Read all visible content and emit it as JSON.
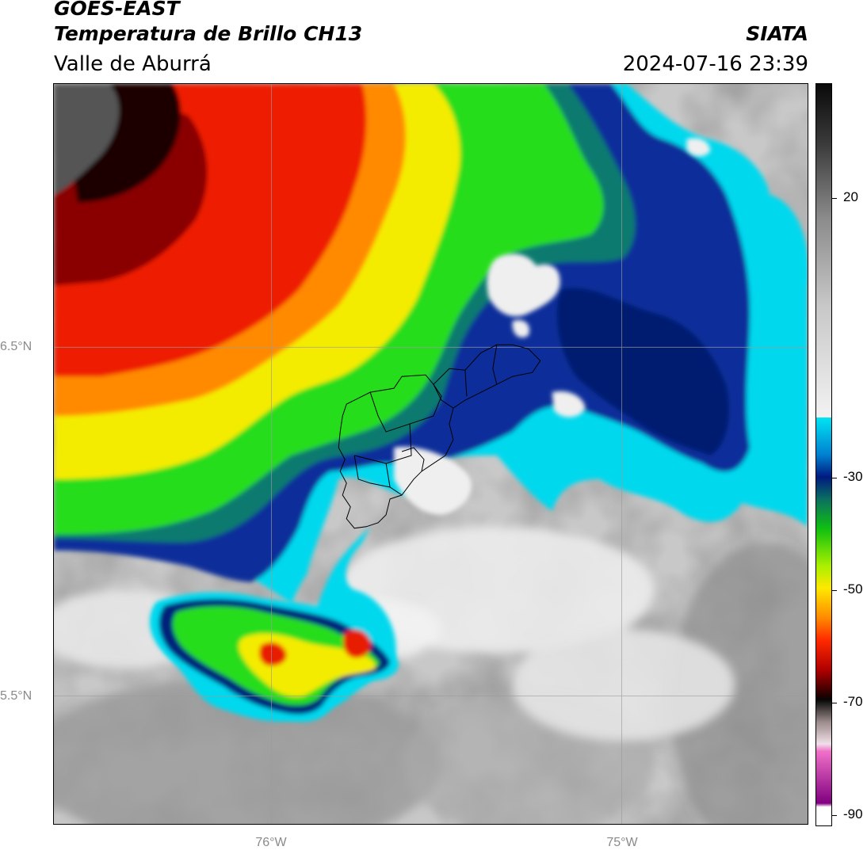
{
  "header": {
    "title": "GOES-EAST",
    "subtitle": "Temperatura de Brillo CH13",
    "region": "Valle de Aburrá",
    "brand": "SIATA",
    "datetime": "2024-07-16 23:39"
  },
  "map": {
    "lon_labels": [
      "76°W",
      "75°W"
    ],
    "lat_labels": [
      "6.5°N",
      "5.5°N"
    ],
    "gridlines": true
  },
  "colorbar": {
    "min": -90,
    "max": 30,
    "tick_labels": [
      "20",
      "-30",
      "-50",
      "-70",
      "-90"
    ],
    "tick_values": [
      20,
      -30,
      -50,
      -70,
      -90
    ]
  },
  "colors": {
    "cold_cloud_core": "#d00000",
    "convective_green": "#22e000",
    "convective_yellow": "#ffee00",
    "deep_blue": "#002a8a",
    "cyan_edge": "#00dcf0",
    "clear_gray": "#a0a0a0"
  }
}
